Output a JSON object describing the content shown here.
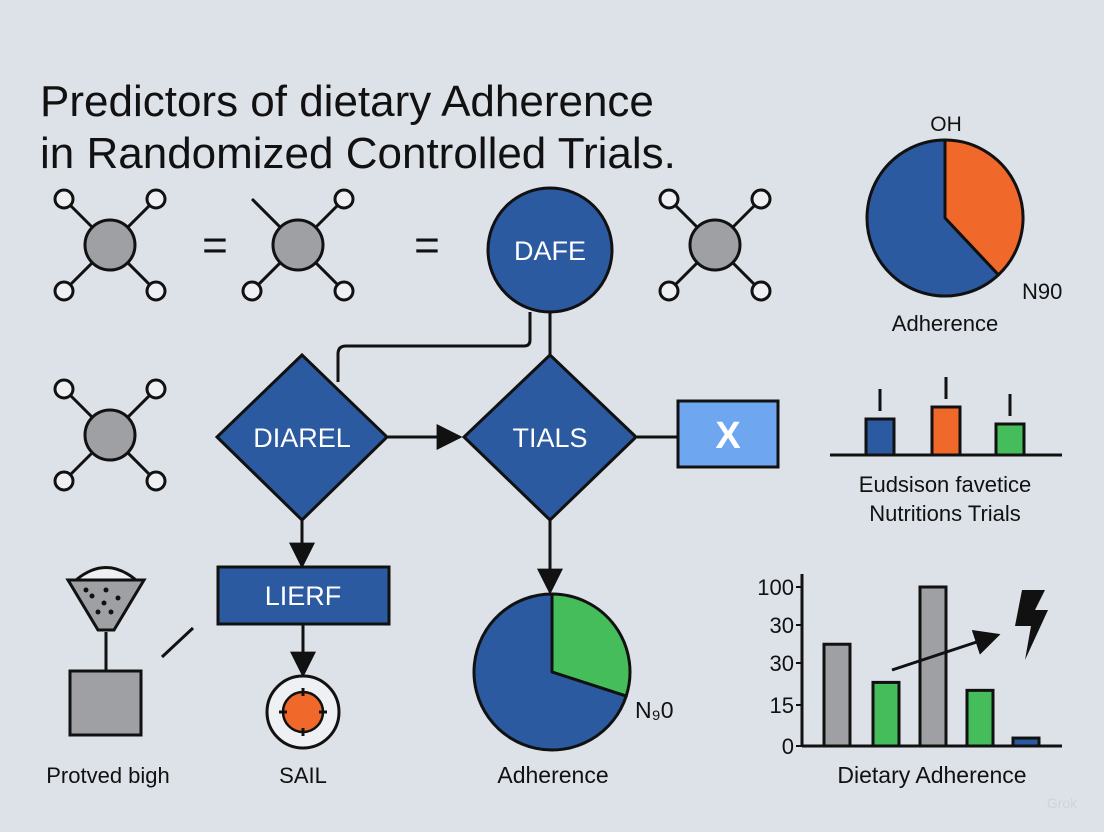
{
  "title": {
    "line1": "Predictors of dietary Adherence",
    "line2": "in Randomized Controlled Trials."
  },
  "colors": {
    "background": "#dde2e9",
    "blue": "#2b5aa0",
    "orange": "#f0692a",
    "green": "#45bd5a",
    "gray": "#9ea0a4",
    "light_blue": "#6ea7ef"
  },
  "icons": [
    "molecule-icon",
    "equals-icon",
    "funnel-icon",
    "target-icon",
    "lightning-icon"
  ],
  "flow": {
    "circle_node": "DAFE",
    "diamond_left": "DIAREL",
    "diamond_right": "TIALS",
    "box_x": "X",
    "box_lierf": "LIERF",
    "equals": "="
  },
  "labels": {
    "funnel_label": "Protved bigh",
    "target_label": "SAIL",
    "center_pie_label": "Adherence",
    "center_pie_note": "N₉0"
  },
  "chart_data": [
    {
      "type": "pie",
      "title": "OH",
      "xlabel": "Adherence",
      "annotation": "N90",
      "slices": [
        {
          "color": "#f0692a",
          "fraction": 0.38
        },
        {
          "color": "#2b5aa0",
          "fraction": 0.62
        }
      ]
    },
    {
      "type": "bar",
      "caption_line1": "Eudsison favetice",
      "caption_line2": "Nutritions Trials",
      "values": [
        36,
        48,
        31
      ],
      "colors": [
        "#2b5aa0",
        "#f0692a",
        "#45bd5a"
      ],
      "error_bars": true
    },
    {
      "type": "pie",
      "xlabel": "Adherence",
      "annotation": "N₉0",
      "slices": [
        {
          "color": "#45bd5a",
          "fraction": 0.3
        },
        {
          "color": "#2b5aa0",
          "fraction": 0.7
        }
      ]
    },
    {
      "type": "bar",
      "xlabel": "Dietary Adherence",
      "yticks": [
        "100",
        "30",
        "30",
        "15",
        "0"
      ],
      "values": [
        64,
        40,
        100,
        35,
        5
      ],
      "colors": [
        "#9ea0a4",
        "#45bd5a",
        "#9ea0a4",
        "#45bd5a",
        "#2b5aa0"
      ],
      "ylim": [
        0,
        100
      ],
      "annotation": "trend arrow and lightning icon"
    }
  ],
  "watermark": "Grok"
}
